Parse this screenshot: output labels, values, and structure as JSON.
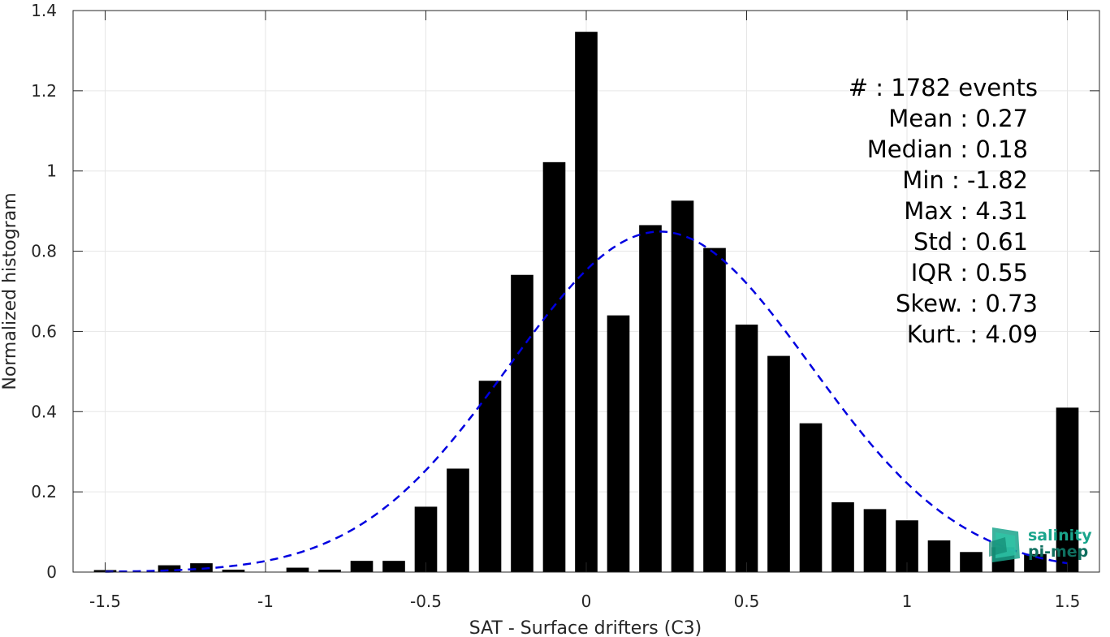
{
  "chart_data": {
    "type": "bar",
    "title": "",
    "xlabel": "SAT - Surface drifters (C3)",
    "ylabel": "Normalized histogram",
    "xlim": [
      -1.6,
      1.6
    ],
    "ylim": [
      0,
      1.4
    ],
    "grid": true,
    "x_ticks": [
      -1.5,
      -1,
      -0.5,
      0,
      0.5,
      1,
      1.5
    ],
    "x_tick_labels": [
      "-1.5",
      "-1",
      "-0.5",
      "0",
      "0.5",
      "1",
      "1.5"
    ],
    "y_ticks": [
      0,
      0.2,
      0.4,
      0.6,
      0.8,
      1,
      1.2,
      1.4
    ],
    "y_tick_labels": [
      "0",
      "0.2",
      "0.4",
      "0.6",
      "0.8",
      "1",
      "1.2",
      "1.4"
    ],
    "bar_color": "#000000",
    "bin_width": 0.1,
    "bins": [
      {
        "x": -1.5,
        "y": 0.005
      },
      {
        "x": -1.3,
        "y": 0.017
      },
      {
        "x": -1.2,
        "y": 0.022
      },
      {
        "x": -1.1,
        "y": 0.006
      },
      {
        "x": -0.9,
        "y": 0.011
      },
      {
        "x": -0.8,
        "y": 0.006
      },
      {
        "x": -0.7,
        "y": 0.028
      },
      {
        "x": -0.6,
        "y": 0.028
      },
      {
        "x": -0.5,
        "y": 0.163
      },
      {
        "x": -0.4,
        "y": 0.258
      },
      {
        "x": -0.3,
        "y": 0.477
      },
      {
        "x": -0.2,
        "y": 0.741
      },
      {
        "x": -0.1,
        "y": 1.022
      },
      {
        "x": 0.0,
        "y": 1.347
      },
      {
        "x": 0.1,
        "y": 0.64
      },
      {
        "x": 0.2,
        "y": 0.865
      },
      {
        "x": 0.3,
        "y": 0.926
      },
      {
        "x": 0.4,
        "y": 0.808
      },
      {
        "x": 0.5,
        "y": 0.617
      },
      {
        "x": 0.6,
        "y": 0.539
      },
      {
        "x": 0.7,
        "y": 0.371
      },
      {
        "x": 0.8,
        "y": 0.174
      },
      {
        "x": 0.9,
        "y": 0.157
      },
      {
        "x": 1.0,
        "y": 0.129
      },
      {
        "x": 1.1,
        "y": 0.079
      },
      {
        "x": 1.2,
        "y": 0.05
      },
      {
        "x": 1.3,
        "y": 0.062
      },
      {
        "x": 1.4,
        "y": 0.045
      },
      {
        "x": 1.5,
        "y": 0.41
      }
    ],
    "fit_curve": {
      "type": "gaussian",
      "mean": 0.23,
      "std": 0.47,
      "color": "#0000e0",
      "style": "dashed",
      "x_range": [
        -1.5,
        1.5
      ]
    },
    "stats": [
      {
        "label": "#  : 1782 events"
      },
      {
        "label": "Mean : 0.27"
      },
      {
        "label": "Median : 0.18"
      },
      {
        "label": "Min : -1.82"
      },
      {
        "label": "Max : 4.31"
      },
      {
        "label": "Std : 0.61"
      },
      {
        "label": "IQR : 0.55"
      },
      {
        "label": "Skew. : 0.73"
      },
      {
        "label": "Kurt. : 4.09"
      }
    ],
    "logo": {
      "line1": "salinity",
      "line2": "pi-mep",
      "color": "#1aa58c"
    }
  }
}
